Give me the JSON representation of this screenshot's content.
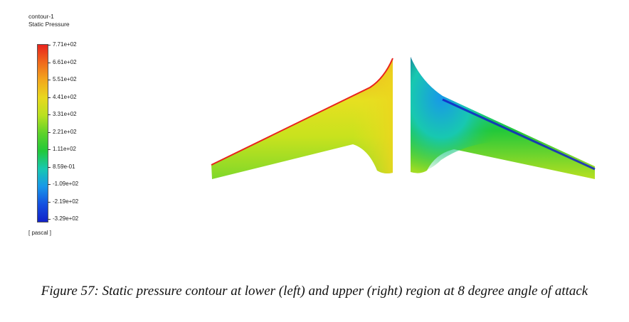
{
  "legend": {
    "contour_name": "contour-1",
    "quantity": "Static Pressure",
    "unit": "[ pascal ]",
    "ticks": [
      "7.71e+02",
      "6.61e+02",
      "5.51e+02",
      "4.41e+02",
      "3.31e+02",
      "2.21e+02",
      "1.11e+02",
      "8.59e-01",
      "-1.09e+02",
      "-2.19e+02",
      "-3.29e+02"
    ],
    "colors": [
      "#e8241d",
      "#f06a1d",
      "#f2a81e",
      "#e8d81e",
      "#b8e020",
      "#5ed22a",
      "#22c83a",
      "#18c8b0",
      "#1898e8",
      "#1450e0",
      "#1222c8"
    ]
  },
  "caption": "Figure 57: Static pressure contour at lower (left) and upper (right) region at 8 degree angle of attack"
}
